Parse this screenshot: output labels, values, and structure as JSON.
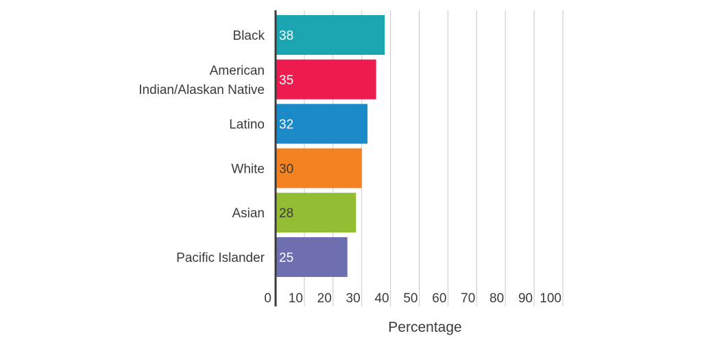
{
  "chart_data": {
    "type": "bar",
    "orientation": "horizontal",
    "categories": [
      [
        "Black"
      ],
      [
        "American",
        "Indian/Alaskan Native"
      ],
      [
        "Latino"
      ],
      [
        "White"
      ],
      [
        "Asian"
      ],
      [
        "Pacific Islander"
      ]
    ],
    "values": [
      38,
      35,
      32,
      30,
      28,
      25
    ],
    "colors": [
      "#1ba5b0",
      "#ee1c4e",
      "#1a8ac9",
      "#f28222",
      "#93bd33",
      "#6e6fb0"
    ],
    "value_label_colors": [
      "#ffffff",
      "#ffffff",
      "#ffffff",
      "#3a3a3a",
      "#3a3a3a",
      "#ffffff"
    ],
    "xlabel": "Percentage",
    "xlim": [
      0,
      100
    ],
    "xticks": [
      0,
      10,
      20,
      30,
      40,
      50,
      60,
      70,
      80,
      90,
      100
    ],
    "grid": true
  }
}
